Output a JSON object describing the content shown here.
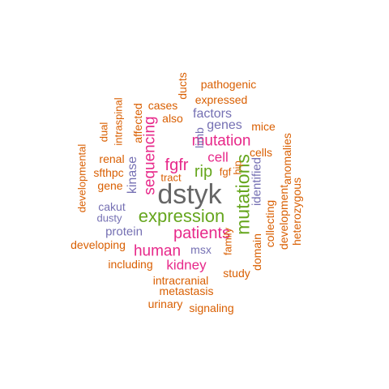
{
  "palette": {
    "orange": "#D95F02",
    "purple": "#7570B3",
    "magenta": "#E7298A",
    "green": "#66A61E",
    "gray": "#666666"
  },
  "words": [
    {
      "text": "dstyk",
      "color": "gray"
    },
    {
      "text": "mutations",
      "color": "green"
    },
    {
      "text": "expression",
      "color": "green"
    },
    {
      "text": "patients",
      "color": "magenta"
    },
    {
      "text": "mutation",
      "color": "magenta"
    },
    {
      "text": "fgfr",
      "color": "magenta"
    },
    {
      "text": "rip",
      "color": "green"
    },
    {
      "text": "human",
      "color": "magenta"
    },
    {
      "text": "kidney",
      "color": "magenta"
    },
    {
      "text": "sequencing",
      "color": "magenta"
    },
    {
      "text": "kinase",
      "color": "purple"
    },
    {
      "text": "cell",
      "color": "magenta"
    },
    {
      "text": "identified",
      "color": "purple"
    },
    {
      "text": "genes",
      "color": "purple"
    },
    {
      "text": "factors",
      "color": "purple"
    },
    {
      "text": "protein",
      "color": "purple"
    },
    {
      "text": "cakut",
      "color": "purple"
    },
    {
      "text": "msx",
      "color": "purple"
    },
    {
      "text": "limb",
      "color": "purple"
    },
    {
      "text": "dusty",
      "color": "purple"
    },
    {
      "text": "pathogenic",
      "color": "orange"
    },
    {
      "text": "expressed",
      "color": "orange"
    },
    {
      "text": "cases",
      "color": "orange"
    },
    {
      "text": "also",
      "color": "orange"
    },
    {
      "text": "mice",
      "color": "orange"
    },
    {
      "text": "ducts",
      "color": "orange"
    },
    {
      "text": "affected",
      "color": "orange"
    },
    {
      "text": "intraspinal",
      "color": "orange"
    },
    {
      "text": "dual",
      "color": "orange"
    },
    {
      "text": "renal",
      "color": "orange"
    },
    {
      "text": "sfthpc",
      "color": "orange"
    },
    {
      "text": "gene",
      "color": "orange"
    },
    {
      "text": "developmental",
      "color": "orange"
    },
    {
      "text": "tract",
      "color": "orange"
    },
    {
      "text": "fgf",
      "color": "orange"
    },
    {
      "text": "hip",
      "color": "orange"
    },
    {
      "text": "cells",
      "color": "orange"
    },
    {
      "text": "anomalies",
      "color": "orange"
    },
    {
      "text": "development",
      "color": "orange"
    },
    {
      "text": "heterozygous",
      "color": "orange"
    },
    {
      "text": "collecting",
      "color": "orange"
    },
    {
      "text": "domain",
      "color": "orange"
    },
    {
      "text": "family",
      "color": "orange"
    },
    {
      "text": "study",
      "color": "orange"
    },
    {
      "text": "developing",
      "color": "orange"
    },
    {
      "text": "including",
      "color": "orange"
    },
    {
      "text": "intracranial",
      "color": "orange"
    },
    {
      "text": "metastasis",
      "color": "orange"
    },
    {
      "text": "urinary",
      "color": "orange"
    },
    {
      "text": "signaling",
      "color": "orange"
    }
  ]
}
